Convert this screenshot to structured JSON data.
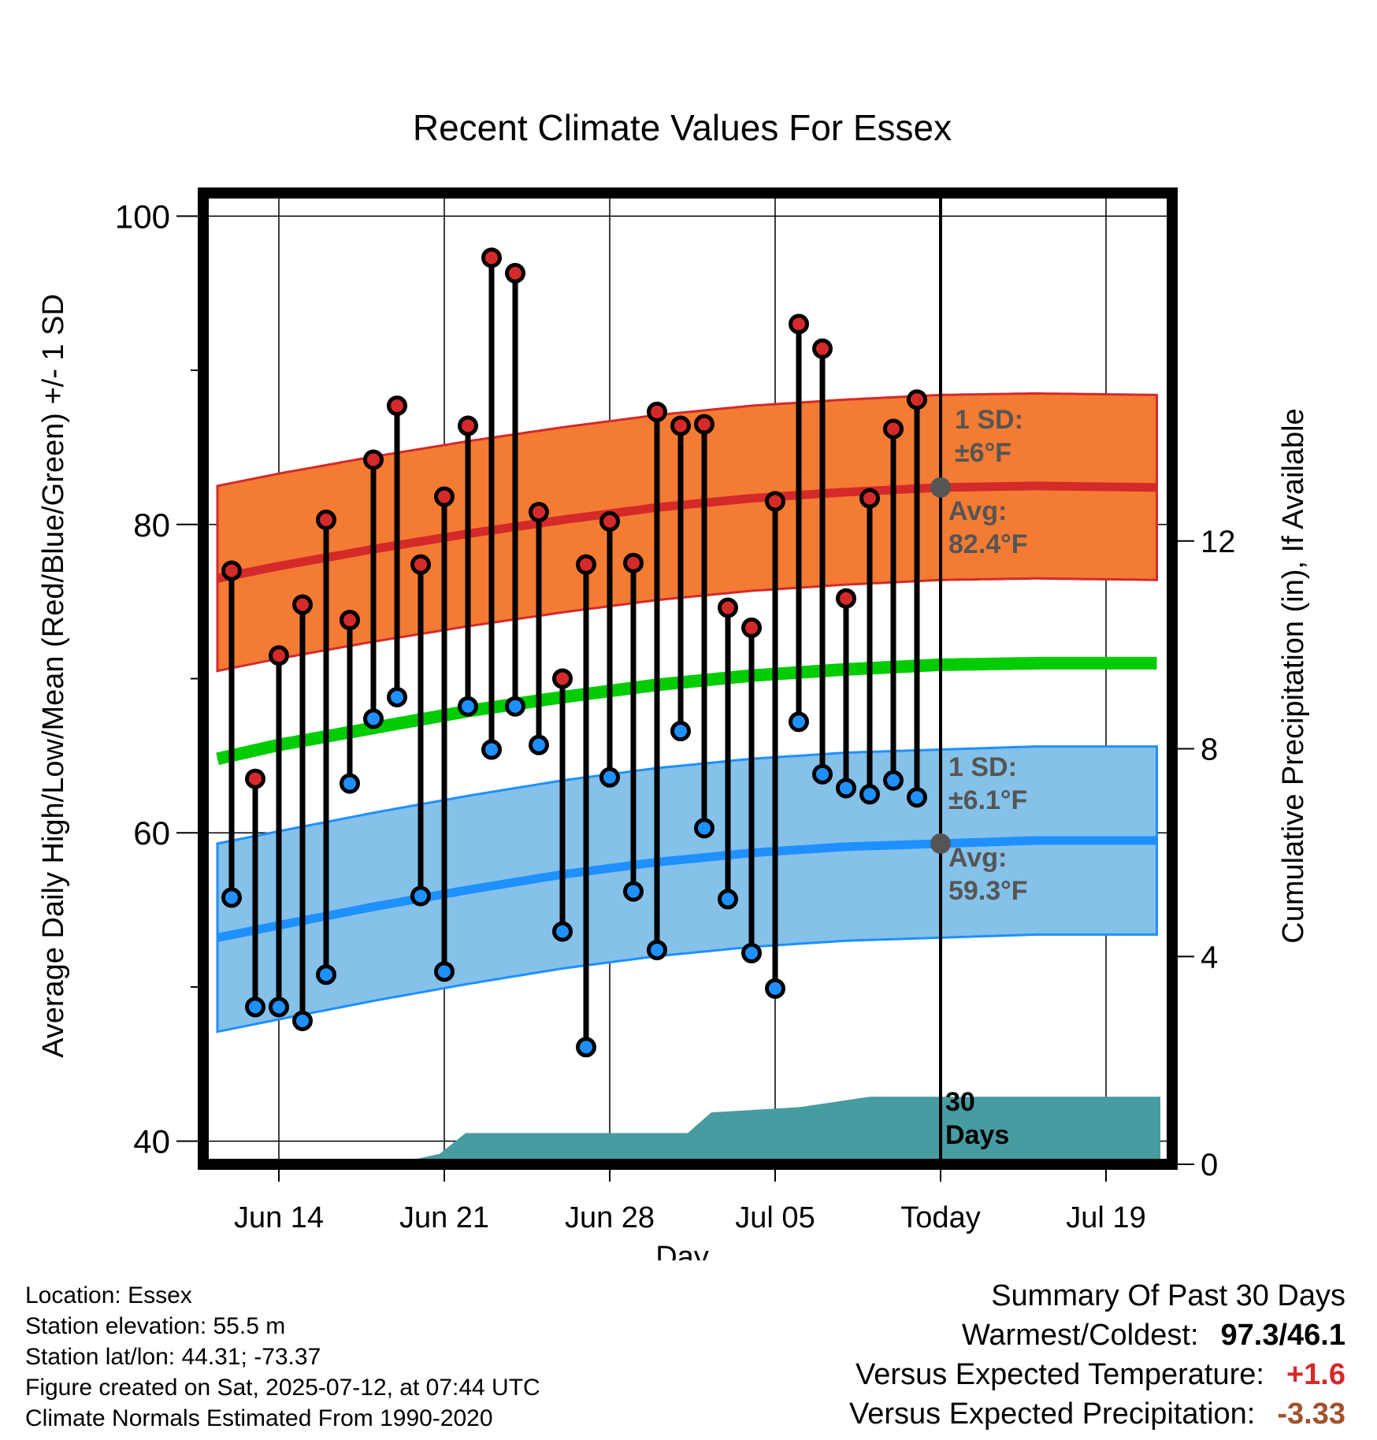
{
  "title": "Recent Climate Values For Essex",
  "chart_data": {
    "type": "line",
    "title": "Recent Climate Values For Essex",
    "xlabel": "Day",
    "ylabel": "Average Daily High/Low/Mean (Red/Blue/Green) +/- 1 SD",
    "y2label": "Cumulative Precipitation (in), If Available",
    "ylim": [
      38.5,
      101.5
    ],
    "y2lim": [
      0,
      18.7
    ],
    "yticks": [
      40,
      60,
      80,
      100
    ],
    "yticks_minor": [
      50,
      70,
      90
    ],
    "y2ticks": [
      0,
      4,
      8,
      12
    ],
    "x_tick_labels": [
      "Jun 14",
      "Jun 21",
      "Jun 28",
      "Jul 05",
      "Today",
      "Jul 19"
    ],
    "x_tick_days": [
      0,
      7,
      14,
      21,
      28,
      35
    ],
    "x_range_days": [
      -3.2,
      37.8
    ],
    "today_day": 28,
    "grid": true,
    "daily_high": [
      77.0,
      63.5,
      71.5,
      74.8,
      80.3,
      73.8,
      84.2,
      87.7,
      77.4,
      81.8,
      86.4,
      97.3,
      96.3,
      80.8,
      70.0,
      77.4,
      80.2,
      77.5,
      87.3,
      86.4,
      86.5,
      74.6,
      73.3,
      81.5,
      93.0,
      91.4,
      75.2,
      81.7,
      86.2,
      88.1
    ],
    "daily_low": [
      55.8,
      48.7,
      48.7,
      47.8,
      50.8,
      63.2,
      67.4,
      68.8,
      55.9,
      51.0,
      68.2,
      65.4,
      68.2,
      65.7,
      53.6,
      46.1,
      63.6,
      56.2,
      52.4,
      66.6,
      60.3,
      55.7,
      52.2,
      49.9,
      67.2,
      63.8,
      62.9,
      62.5,
      63.4,
      62.3
    ],
    "daily_days": [
      -2,
      -1,
      0,
      1,
      2,
      3,
      4,
      5,
      6,
      7,
      8,
      9,
      10,
      11,
      12,
      13,
      14,
      15,
      16,
      17,
      18,
      19,
      20,
      21,
      22,
      23,
      24,
      25,
      26,
      27
    ],
    "normal_days": [
      -2.6,
      0,
      4,
      8,
      12,
      16,
      20,
      24,
      28,
      32,
      37.3
    ],
    "normal_high": [
      76.5,
      77.3,
      78.4,
      79.4,
      80.3,
      81.1,
      81.7,
      82.1,
      82.4,
      82.5,
      82.4
    ],
    "normal_low": [
      53.2,
      54.0,
      55.2,
      56.3,
      57.3,
      58.1,
      58.7,
      59.1,
      59.3,
      59.5,
      59.5
    ],
    "normal_mean": [
      64.8,
      65.7,
      66.8,
      67.9,
      68.8,
      69.6,
      70.2,
      70.6,
      70.9,
      71.0,
      71.0
    ],
    "high_sd": 6,
    "low_sd": 6.1,
    "precip_days": [
      -2.6,
      4.8,
      6.8,
      7.9,
      17.3,
      18.3,
      22.0,
      25.0,
      37.3
    ],
    "precip_cum": [
      0,
      0,
      0.2,
      0.6,
      0.6,
      1.0,
      1.1,
      1.3,
      1.3
    ],
    "annotations": {
      "high_sd": [
        "1 SD:",
        "±6°F"
      ],
      "high_avg": [
        "Avg:",
        "82.4°F"
      ],
      "low_sd": [
        "1 SD:",
        "±6.1°F"
      ],
      "low_avg": [
        "Avg:",
        "59.3°F"
      ],
      "window": [
        "30",
        "Days"
      ]
    },
    "colors": {
      "high_band": "#f47b33",
      "high_line": "#d42a2a",
      "low_band": "#85c1e9",
      "low_line": "#1e90ff",
      "mean_line": "#00cc00",
      "precip": "#479ca1",
      "high_dot": "#d42a2a",
      "low_dot": "#1e90ff",
      "annotation": "#555555"
    }
  },
  "location": {
    "name": "Location: Essex",
    "elevation": "Station elevation: 55.5 m",
    "latlon": "Station lat/lon: 44.31; -73.37",
    "created": "Figure created on Sat, 2025-07-12, at 07:44 UTC",
    "normals": "Climate Normals Estimated From 1990-2020"
  },
  "summary": {
    "heading": "Summary Of Past 30 Days",
    "warmest_label": "Warmest/Coldest:",
    "warmest_value": "97.3/46.1",
    "temp_label": "Versus Expected Temperature:",
    "temp_value": "+1.6",
    "temp_color": "#d42a2a",
    "precip_label": "Versus Expected Precipitation:",
    "precip_value": "-3.33",
    "precip_color": "#a0522d"
  }
}
